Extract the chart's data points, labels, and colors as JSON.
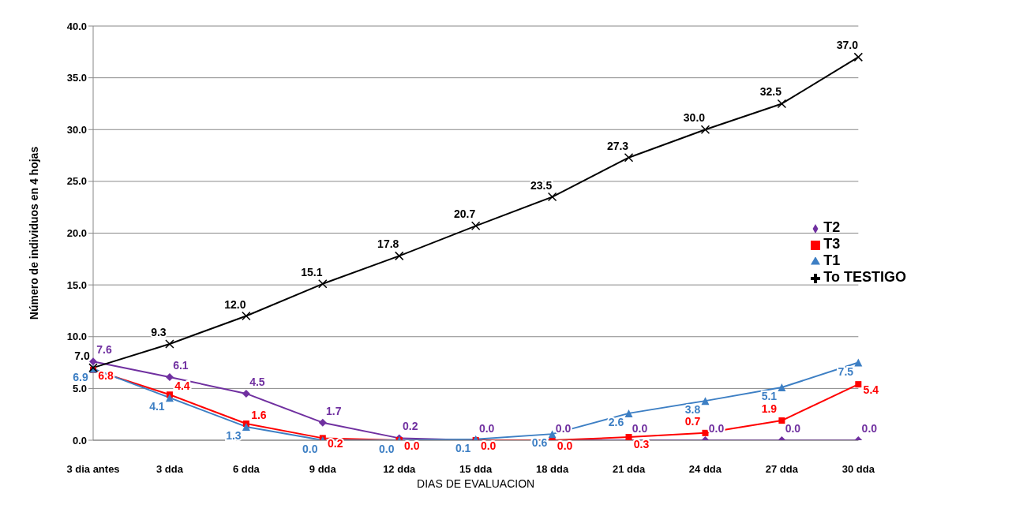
{
  "chart_data": {
    "type": "line",
    "xlabel": "DIAS DE EVALUACION",
    "ylabel": "Número de individuos en 4 hojas",
    "categories": [
      "3 dia antes",
      "3 dda",
      "6 dda",
      "9 dda",
      "12 dda",
      "15 dda",
      "18 dda",
      "21 dda",
      "24 dda",
      "27 dda",
      "30 dda"
    ],
    "ylim": [
      0,
      40
    ],
    "yticks": [
      {
        "value": 0,
        "label": "0.0"
      },
      {
        "value": 5,
        "label": "5.0"
      },
      {
        "value": 10,
        "label": "10.0"
      },
      {
        "value": 15,
        "label": "15.0"
      },
      {
        "value": 20,
        "label": "20.0"
      },
      {
        "value": 25,
        "label": "25.0"
      },
      {
        "value": 30,
        "label": "30.0"
      },
      {
        "value": 35,
        "label": "35.0"
      },
      {
        "value": 40,
        "label": "40.0"
      }
    ],
    "grid": "y",
    "legend": "right",
    "line_style": "solid",
    "series": [
      {
        "name": "T2",
        "color": "#7030a0",
        "marker": "diamond",
        "values": [
          7.6,
          6.1,
          4.5,
          1.7,
          0.2,
          0.0,
          0.0,
          0.0,
          0.0,
          0.0,
          0.0
        ],
        "value_labels": [
          "7.6",
          "6.1",
          "4.5",
          "1.7",
          "0.2",
          "0.0",
          "0.0",
          "0.0",
          "0.0",
          "0.0",
          "0.0"
        ]
      },
      {
        "name": "T3",
        "color": "#ff0000",
        "marker": "square",
        "values": [
          6.8,
          4.4,
          1.6,
          0.2,
          0.0,
          0.0,
          0.0,
          0.3,
          0.7,
          1.9,
          5.4
        ],
        "value_labels": [
          "6.8",
          "4.4",
          "1.6",
          "0.2",
          "0.0",
          "0.0",
          "0.0",
          "0.3",
          "0.7",
          "1.9",
          "5.4"
        ]
      },
      {
        "name": "T1",
        "color": "#3d7fc4",
        "marker": "triangle",
        "values": [
          6.9,
          4.1,
          1.3,
          0.0,
          0.0,
          0.1,
          0.6,
          2.6,
          3.8,
          5.1,
          7.5
        ],
        "value_labels": [
          "6.9",
          "4.1",
          "1.3",
          "0.0",
          "0.0",
          "0.1",
          "0.6",
          "2.6",
          "3.8",
          "5.1",
          "7.5"
        ]
      },
      {
        "name": "To TESTIGO",
        "color": "#000000",
        "marker": "cross",
        "values": [
          7.0,
          9.3,
          12.0,
          15.1,
          17.8,
          20.7,
          23.5,
          27.3,
          30.0,
          32.5,
          37.0
        ],
        "value_labels": [
          "7.0",
          "9.3",
          "12.0",
          "15.1",
          "17.8",
          "20.7",
          "23.5",
          "27.3",
          "30.0",
          "32.5",
          "37.0"
        ]
      }
    ]
  }
}
